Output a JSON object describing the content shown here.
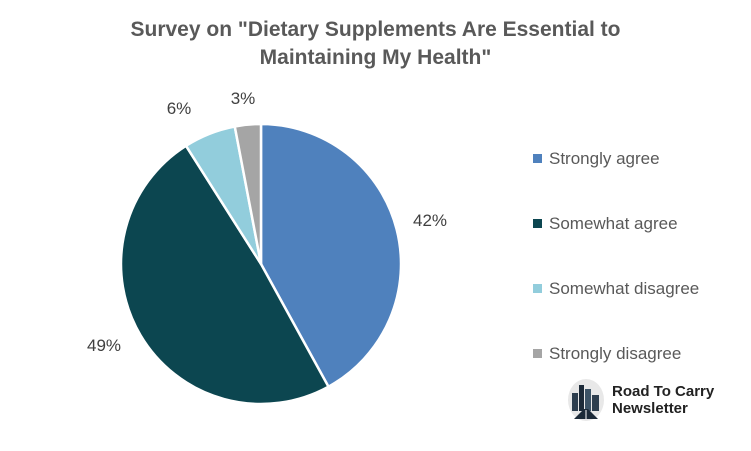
{
  "chart_data": {
    "type": "pie",
    "title": "Survey on \"Dietary Supplements Are Essential to Maintaining My Health\"",
    "categories": [
      "Strongly agree",
      "Somewhat agree",
      "Somewhat disagree",
      "Strongly disagree"
    ],
    "values": [
      42,
      49,
      6,
      3
    ],
    "labels": [
      "42%",
      "49%",
      "6%",
      "3%"
    ],
    "colors": [
      "#4F81BD",
      "#0C4650",
      "#92CDDC",
      "#A5A5A5"
    ],
    "legend_position": "right"
  },
  "branding": {
    "line1": "Road To Carry",
    "line2": "Newsletter"
  }
}
